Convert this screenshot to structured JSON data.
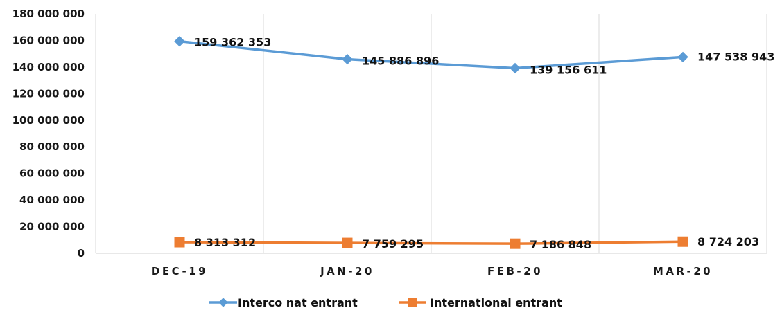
{
  "chart_data": {
    "type": "line",
    "categories": [
      "DEC-19",
      "JAN-20",
      "FEB-20",
      "MAR-20"
    ],
    "series": [
      {
        "name": "Interco nat entrant",
        "color": "#5b9bd5",
        "marker": "diamond",
        "values": [
          159362353,
          145886896,
          139156611,
          147538943
        ],
        "labels": [
          "159 362 353",
          "145 886 896",
          "139 156 611",
          "147 538 943"
        ]
      },
      {
        "name": "International entrant",
        "color": "#ed7d31",
        "marker": "square",
        "values": [
          8313312,
          7759295,
          7186848,
          8724203
        ],
        "labels": [
          "8 313 312",
          "7 759 295",
          "7 186 848",
          "8 724 203"
        ]
      }
    ],
    "ylim": [
      0,
      180000000
    ],
    "yticks": [
      0,
      20000000,
      40000000,
      60000000,
      80000000,
      100000000,
      120000000,
      140000000,
      160000000,
      180000000
    ],
    "ytick_labels": [
      "0",
      "20 000 000",
      "40 000 000",
      "60 000 000",
      "80 000 000",
      "100 000 000",
      "120 000 000",
      "140 000 000",
      "160 000 000",
      "180 000 000"
    ],
    "grid": "vertical",
    "legend": "bottom-center"
  }
}
